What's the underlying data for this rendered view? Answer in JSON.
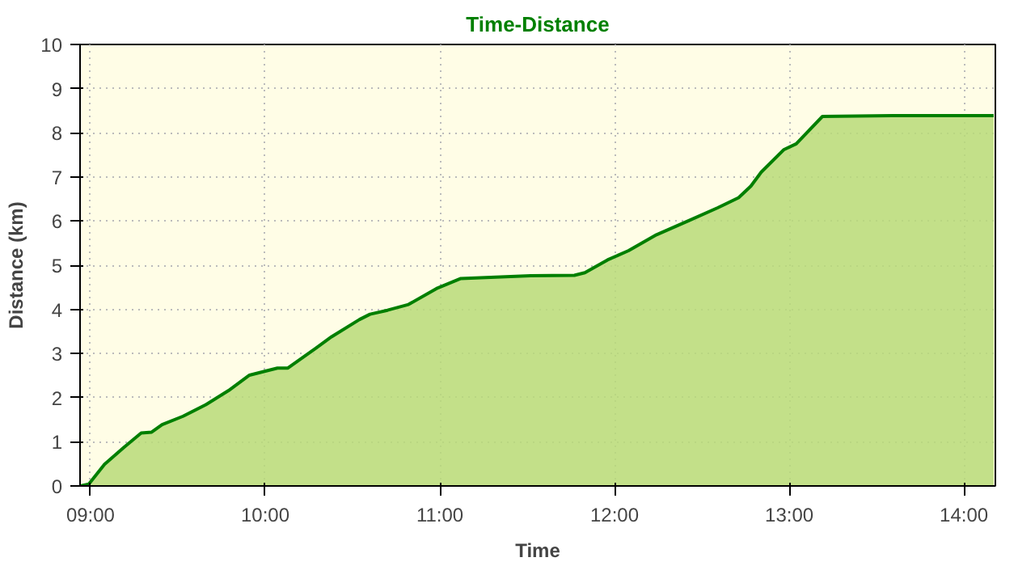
{
  "chart_data": {
    "type": "area",
    "title": "Time-Distance",
    "xlabel": "Time",
    "ylabel": "Distance (km)",
    "xlim": [
      8.94,
      14.18
    ],
    "ylim": [
      0,
      10
    ],
    "xticks": [
      {
        "value": 9,
        "label": "09:00"
      },
      {
        "value": 10,
        "label": "10:00"
      },
      {
        "value": 11,
        "label": "11:00"
      },
      {
        "value": 12,
        "label": "12:00"
      },
      {
        "value": 13,
        "label": "13:00"
      },
      {
        "value": 14,
        "label": "14:00"
      }
    ],
    "yticks": [
      0,
      1,
      2,
      3,
      4,
      5,
      6,
      7,
      8,
      9,
      10
    ],
    "grid": true,
    "line_style": "solid",
    "marker": "none",
    "series": [
      {
        "color": "#007f00",
        "x": [
          8.94,
          8.99,
          9.08,
          9.19,
          9.29,
          9.35,
          9.41,
          9.53,
          9.66,
          9.79,
          9.91,
          10.01,
          10.07,
          10.13,
          10.29,
          10.38,
          10.54,
          10.6,
          10.7,
          10.82,
          10.98,
          11.12,
          11.52,
          11.77,
          11.83,
          11.96,
          12.08,
          12.24,
          12.43,
          12.59,
          12.71,
          12.78,
          12.84,
          12.97,
          13.04,
          13.19,
          13.59,
          14.17
        ],
        "values": [
          0,
          0.04,
          0.49,
          0.87,
          1.2,
          1.22,
          1.39,
          1.58,
          1.84,
          2.16,
          2.51,
          2.61,
          2.67,
          2.67,
          3.12,
          3.38,
          3.77,
          3.89,
          3.98,
          4.11,
          4.47,
          4.7,
          4.76,
          4.77,
          4.83,
          5.12,
          5.33,
          5.69,
          6.02,
          6.3,
          6.53,
          6.79,
          7.11,
          7.62,
          7.75,
          8.37,
          8.39,
          8.39
        ]
      }
    ]
  }
}
